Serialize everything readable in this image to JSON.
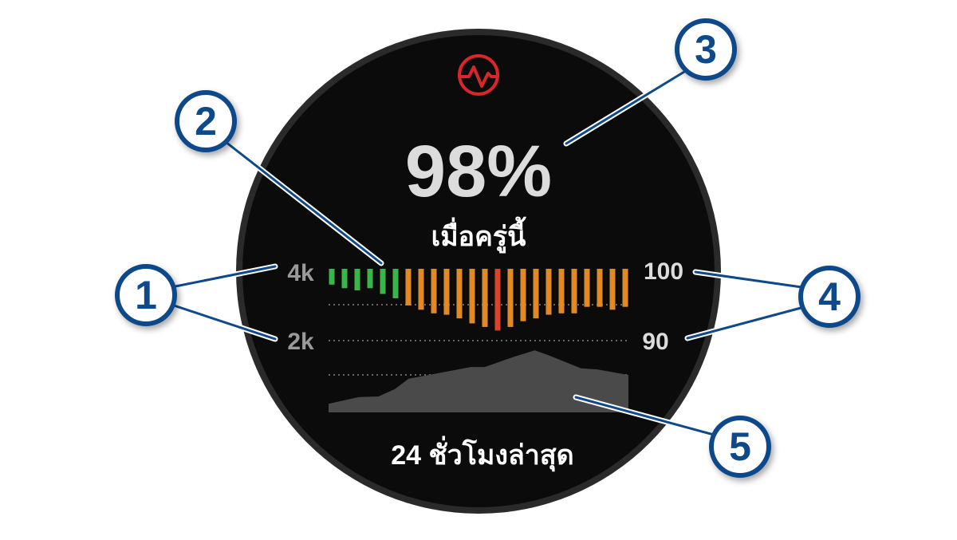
{
  "watch": {
    "icon": "pulse-ox-icon",
    "value": "98%",
    "subtitle": "เมื่อครู่นี้",
    "footer": "24 ชั่วโมงล่าสุด",
    "colors": {
      "face": "#0b0b0b",
      "bezel": "#2a2a2a",
      "icon": "#d9262b",
      "green": "#3ab54a",
      "orange": "#e08a26",
      "red": "#d9432a",
      "area": "#4a4a4a",
      "text": "#ffffff",
      "value": "#dcdcdc",
      "axis": "#9a9a9a",
      "callout": "#0e4a8a"
    }
  },
  "chart_data": [
    {
      "type": "bar",
      "title": "",
      "ylabel": "",
      "ylim": [
        90,
        100
      ],
      "yticks": [
        "100",
        "90"
      ],
      "values": [
        97.8,
        97.3,
        97.0,
        97.3,
        96.5,
        95.9,
        94.9,
        94.3,
        93.8,
        93.6,
        93.1,
        92.4,
        91.9,
        91.4,
        91.9,
        92.7,
        93.1,
        93.6,
        93.8,
        93.8,
        94.7,
        94.7,
        94.3,
        94.7
      ],
      "bars_hang_from_top": true
    },
    {
      "type": "area",
      "title": "",
      "ylabel": "",
      "xlim": [
        0,
        24
      ],
      "ylim": [
        0,
        4000
      ],
      "yticks": [
        "4k",
        "2k"
      ],
      "x": [
        0,
        2.4,
        4,
        5.3,
        6.4,
        8,
        11.4,
        12.5,
        14.9,
        16.5,
        17.5,
        20.2,
        21.5,
        25.5,
        24
      ],
      "y": [
        180,
        370,
        390,
        600,
        900,
        1010,
        1240,
        1240,
        1540,
        1720,
        1590,
        1200,
        1170,
        1010,
        1010
      ]
    }
  ],
  "callouts": [
    "1",
    "2",
    "3",
    "4",
    "5"
  ]
}
